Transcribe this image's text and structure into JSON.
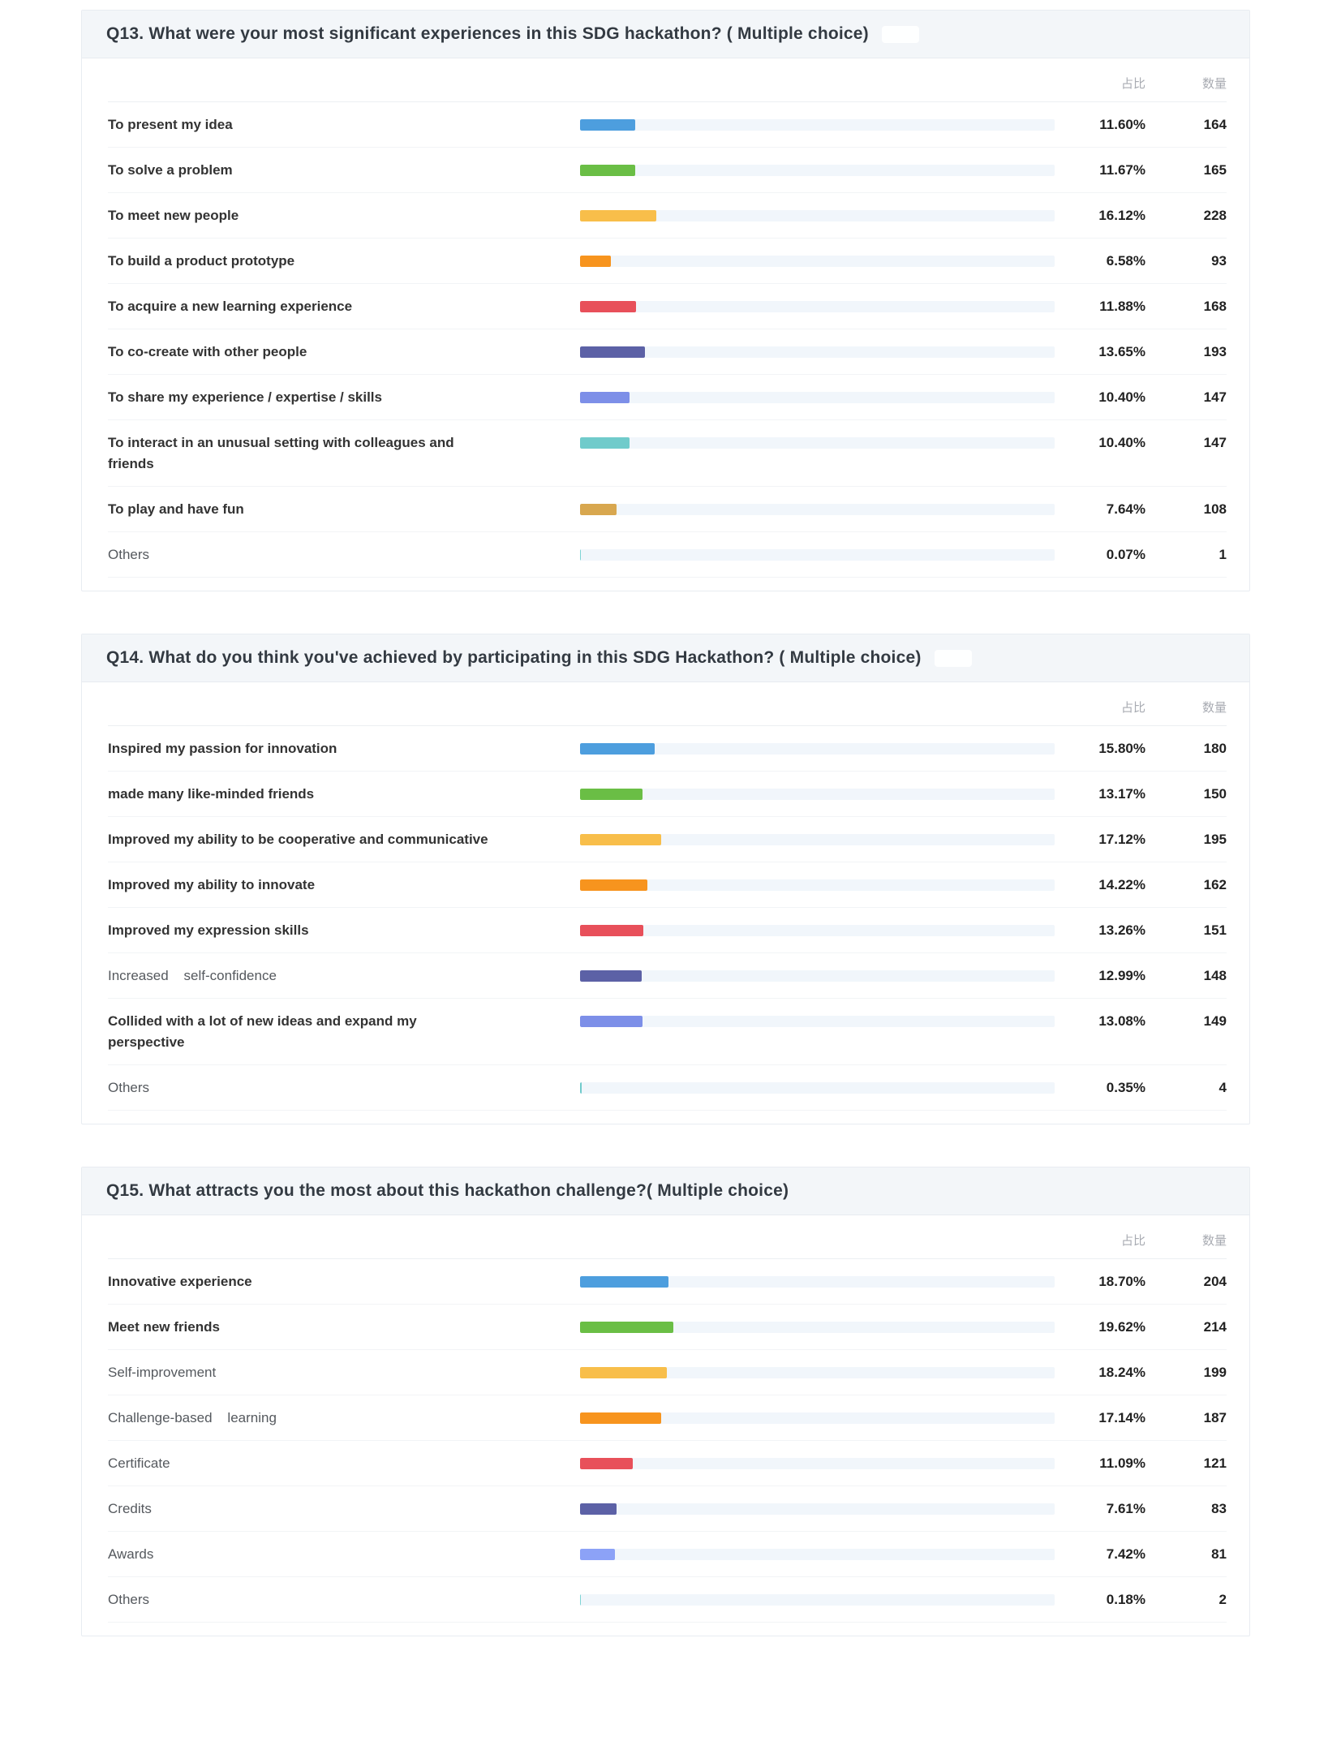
{
  "columns": {
    "ratio": "占比",
    "count": "数量"
  },
  "palette": {
    "blue": "#4d9ede",
    "green": "#6abe45",
    "amber": "#f8be4a",
    "orange": "#f7941e",
    "red": "#e8505a",
    "indigo": "#5c61a6",
    "periwinkle": "#7d8fe8",
    "teal": "#70cbcb",
    "tan": "#d8a74f",
    "track": "#f1f6fb",
    "header_bg": "#f3f6f9"
  },
  "questions": [
    {
      "title": "Q13. What were your most significant experiences in this SDG hackathon? ( Multiple choice)",
      "badge": true,
      "rows": [
        {
          "label": "To present my idea",
          "percent": "11.60%",
          "count": "164",
          "value": 11.6,
          "color": "#4d9ede",
          "bold": true
        },
        {
          "label": "To solve a problem",
          "percent": "11.67%",
          "count": "165",
          "value": 11.67,
          "color": "#6abe45",
          "bold": true
        },
        {
          "label": "To meet new people",
          "percent": "16.12%",
          "count": "228",
          "value": 16.12,
          "color": "#f8be4a",
          "bold": true
        },
        {
          "label": "To build a product prototype",
          "percent": "6.58%",
          "count": "93",
          "value": 6.58,
          "color": "#f7941e",
          "bold": true
        },
        {
          "label": "To acquire a new learning experience",
          "percent": "11.88%",
          "count": "168",
          "value": 11.88,
          "color": "#e8505a",
          "bold": true
        },
        {
          "label": "To co-create with other people",
          "percent": "13.65%",
          "count": "193",
          "value": 13.65,
          "color": "#5c61a6",
          "bold": true
        },
        {
          "label": "To share my experience / expertise / skills",
          "percent": "10.40%",
          "count": "147",
          "value": 10.4,
          "color": "#7d8fe8",
          "bold": true
        },
        {
          "label": "To interact in an unusual setting with colleagues and friends",
          "percent": "10.40%",
          "count": "147",
          "value": 10.4,
          "color": "#70cbcb",
          "bold": true
        },
        {
          "label": "To play and have fun",
          "percent": "7.64%",
          "count": "108",
          "value": 7.64,
          "color": "#d8a74f",
          "bold": true
        },
        {
          "label": "Others",
          "percent": "0.07%",
          "count": "1",
          "value": 0.07,
          "color": "#7ed4d4",
          "bold": false
        }
      ]
    },
    {
      "title": "Q14. What do you think you've achieved by participating in this SDG Hackathon? ( Multiple choice)",
      "badge": true,
      "rows": [
        {
          "label": "Inspired my passion for innovation",
          "percent": "15.80%",
          "count": "180",
          "value": 15.8,
          "color": "#4d9ede",
          "bold": true
        },
        {
          "label": "made many like-minded friends",
          "percent": "13.17%",
          "count": "150",
          "value": 13.17,
          "color": "#6abe45",
          "bold": true
        },
        {
          "label": "Improved my ability to be cooperative and communicative",
          "percent": "17.12%",
          "count": "195",
          "value": 17.12,
          "color": "#f8be4a",
          "bold": true
        },
        {
          "label": "Improved my ability to innovate",
          "percent": "14.22%",
          "count": "162",
          "value": 14.22,
          "color": "#f7941e",
          "bold": true
        },
        {
          "label": "Improved my expression skills",
          "percent": "13.26%",
          "count": "151",
          "value": 13.26,
          "color": "#e8505a",
          "bold": true
        },
        {
          "label": "Increased    self-confidence",
          "percent": "12.99%",
          "count": "148",
          "value": 12.99,
          "color": "#5c61a6",
          "bold": false
        },
        {
          "label": "Collided with a lot of new ideas and expand my perspective",
          "percent": "13.08%",
          "count": "149",
          "value": 13.08,
          "color": "#7d8fe8",
          "bold": true
        },
        {
          "label": "Others",
          "percent": "0.35%",
          "count": "4",
          "value": 0.35,
          "color": "#70cbcb",
          "bold": false
        }
      ]
    },
    {
      "title": "Q15. What attracts you the most about this hackathon challenge?( Multiple choice)",
      "badge": false,
      "rows": [
        {
          "label": "Innovative experience",
          "percent": "18.70%",
          "count": "204",
          "value": 18.7,
          "color": "#4d9ede",
          "bold": true
        },
        {
          "label": "Meet new friends",
          "percent": "19.62%",
          "count": "214",
          "value": 19.62,
          "color": "#6abe45",
          "bold": true
        },
        {
          "label": "Self-improvement",
          "percent": "18.24%",
          "count": "199",
          "value": 18.24,
          "color": "#f8be4a",
          "bold": false
        },
        {
          "label": "Challenge-based    learning",
          "percent": "17.14%",
          "count": "187",
          "value": 17.14,
          "color": "#f7941e",
          "bold": false
        },
        {
          "label": "Certificate",
          "percent": "11.09%",
          "count": "121",
          "value": 11.09,
          "color": "#e8505a",
          "bold": false
        },
        {
          "label": "Credits",
          "percent": "7.61%",
          "count": "83",
          "value": 7.61,
          "color": "#5c61a6",
          "bold": false
        },
        {
          "label": "Awards",
          "percent": "7.42%",
          "count": "81",
          "value": 7.42,
          "color": "#8ca2f7",
          "bold": false
        },
        {
          "label": "Others",
          "percent": "0.18%",
          "count": "2",
          "value": 0.18,
          "color": "#7ed4d4",
          "bold": false
        }
      ]
    }
  ],
  "chart_data": [
    {
      "type": "bar",
      "orientation": "horizontal",
      "title": "Q13. What were your most significant experiences in this SDG hackathon? ( Multiple choice)",
      "column_headers": [
        "占比",
        "数量"
      ],
      "categories": [
        "To present my idea",
        "To solve a problem",
        "To meet new people",
        "To build a product prototype",
        "To acquire a new learning experience",
        "To co-create with other people",
        "To share my experience / expertise / skills",
        "To interact in an unusual setting with colleagues and friends",
        "To play and have fun",
        "Others"
      ],
      "series": [
        {
          "name": "占比",
          "unit": "%",
          "values": [
            11.6,
            11.67,
            16.12,
            6.58,
            11.88,
            13.65,
            10.4,
            10.4,
            7.64,
            0.07
          ]
        },
        {
          "name": "数量",
          "unit": "count",
          "values": [
            164,
            165,
            228,
            93,
            168,
            193,
            147,
            147,
            108,
            1
          ]
        }
      ],
      "xlim": [
        0,
        100
      ],
      "grid": false,
      "legend_position": "none"
    },
    {
      "type": "bar",
      "orientation": "horizontal",
      "title": "Q14. What do you think you've achieved by participating in this SDG Hackathon? ( Multiple choice)",
      "column_headers": [
        "占比",
        "数量"
      ],
      "categories": [
        "Inspired my passion for innovation",
        "made many like-minded friends",
        "Improved my ability to be cooperative and communicative",
        "Improved my ability to innovate",
        "Improved my expression skills",
        "Increased self-confidence",
        "Collided with a lot of new ideas and expand my perspective",
        "Others"
      ],
      "series": [
        {
          "name": "占比",
          "unit": "%",
          "values": [
            15.8,
            13.17,
            17.12,
            14.22,
            13.26,
            12.99,
            13.08,
            0.35
          ]
        },
        {
          "name": "数量",
          "unit": "count",
          "values": [
            180,
            150,
            195,
            162,
            151,
            148,
            149,
            4
          ]
        }
      ],
      "xlim": [
        0,
        100
      ],
      "grid": false,
      "legend_position": "none"
    },
    {
      "type": "bar",
      "orientation": "horizontal",
      "title": "Q15. What attracts you the most about this hackathon challenge?( Multiple choice)",
      "column_headers": [
        "占比",
        "数量"
      ],
      "categories": [
        "Innovative experience",
        "Meet new friends",
        "Self-improvement",
        "Challenge-based learning",
        "Certificate",
        "Credits",
        "Awards",
        "Others"
      ],
      "series": [
        {
          "name": "占比",
          "unit": "%",
          "values": [
            18.7,
            19.62,
            18.24,
            17.14,
            11.09,
            7.61,
            7.42,
            0.18
          ]
        },
        {
          "name": "数量",
          "unit": "count",
          "values": [
            204,
            214,
            199,
            187,
            121,
            83,
            81,
            2
          ]
        }
      ],
      "xlim": [
        0,
        100
      ],
      "grid": false,
      "legend_position": "none"
    }
  ]
}
